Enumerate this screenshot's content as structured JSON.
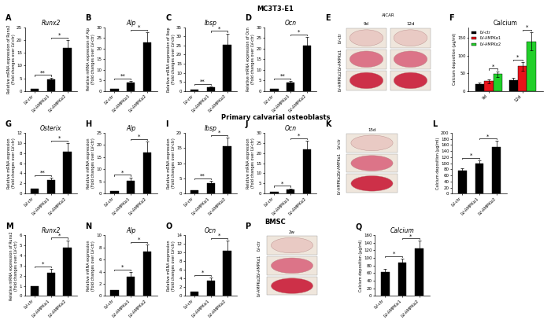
{
  "sections": [
    "MC3T3-E1",
    "Primary calvarial osteoblasts",
    "BMSC"
  ],
  "chart_data": [
    {
      "panel": "A",
      "type": "bar",
      "title": "Runx2",
      "y_label": "Relative mRNA expression of Runx2\n(Fold changes over LV-ctr)",
      "categories": [
        "LV-ctr",
        "LV-AMPKα1",
        "LV-AMPKα2"
      ],
      "values": [
        1,
        4.5,
        17
      ],
      "errors": [
        0,
        0.8,
        3
      ],
      "color": "#000000",
      "significance": [
        "**",
        "*"
      ],
      "ylim": [
        0,
        25
      ],
      "yticks": [
        0,
        5,
        10,
        15,
        20,
        25
      ]
    },
    {
      "panel": "B",
      "type": "bar",
      "title": "Alp",
      "y_label": "Relative mRNA expression of Alp\n(Fold changes over LV-ctr)",
      "categories": [
        "LV-ctr",
        "LV-AMPKα1",
        "LV-AMPKα2"
      ],
      "values": [
        1,
        4,
        23
      ],
      "errors": [
        0,
        0.7,
        4.5
      ],
      "color": "#000000",
      "significance": [
        "**",
        "*"
      ],
      "ylim": [
        0,
        30
      ],
      "yticks": [
        0,
        5,
        10,
        15,
        20,
        25,
        30
      ]
    },
    {
      "panel": "C",
      "type": "bar",
      "title": "Ibsp",
      "y_label": "Relative mRNA expression of Ibsp\n(Fold changes over LV-ctr)",
      "categories": [
        "LV-ctr",
        "LV-AMPKα1",
        "LV-AMPKα2"
      ],
      "values": [
        1,
        2,
        25.5
      ],
      "errors": [
        0,
        0.5,
        6
      ],
      "color": "#000000",
      "significance": [
        "**",
        "*"
      ],
      "ylim": [
        0,
        35
      ],
      "yticks": [
        0,
        5,
        10,
        15,
        20,
        25,
        30,
        35
      ]
    },
    {
      "panel": "D",
      "type": "bar",
      "title": "Ocn",
      "y_label": "Relative mRNA expression of Ocn\n(Fold changes over LV-ctr)",
      "categories": [
        "LV-ctr",
        "LV-AMPKα1",
        "LV-AMPKα2"
      ],
      "values": [
        1,
        4,
        21.5
      ],
      "errors": [
        0,
        0.8,
        4
      ],
      "color": "#000000",
      "significance": [
        "**",
        "*"
      ],
      "ylim": [
        0,
        30
      ],
      "yticks": [
        0,
        5,
        10,
        15,
        20,
        25,
        30
      ]
    },
    {
      "panel": "E",
      "type": "image",
      "header": "AICAR",
      "column_labels": [
        "9d",
        "12d"
      ],
      "row_labels": [
        "LV-ctr",
        "LV-AMPKα1",
        "LV-AMPKα2"
      ]
    },
    {
      "panel": "F",
      "type": "bar",
      "title": "Calcium",
      "y_label": "Calcium deposition (μg/ml)",
      "categories": [
        "9d",
        "12d"
      ],
      "series": [
        {
          "name": "LV-ctr",
          "color": "#000000",
          "values": [
            20,
            32
          ],
          "errors": [
            4,
            6
          ]
        },
        {
          "name": "LV-AMPKα1",
          "color": "#e8121a",
          "values": [
            28,
            70
          ],
          "errors": [
            5,
            12
          ]
        },
        {
          "name": "LV-AMPKα2",
          "color": "#22d02a",
          "values": [
            48,
            140
          ],
          "errors": [
            8,
            25
          ]
        }
      ],
      "significance": [
        [
          null,
          "*"
        ],
        [
          "*",
          "*"
        ]
      ],
      "legend": "upper left",
      "ylim": [
        0,
        180
      ],
      "yticks": [
        0,
        50,
        100,
        150
      ]
    },
    {
      "panel": "G",
      "type": "bar",
      "title": "Osterix",
      "y_label": "Relative mRNA expression\n(Fold changes over LV-ctr)",
      "categories": [
        "LV-ctr",
        "LV-AMPKα1",
        "LV-AMPKα2"
      ],
      "values": [
        1,
        2.7,
        8.3
      ],
      "errors": [
        0,
        0.4,
        1.7
      ],
      "color": "#000000",
      "significance": [
        "**",
        "*"
      ],
      "ylim": [
        0,
        12
      ],
      "yticks": [
        0,
        2,
        4,
        6,
        8,
        10,
        12
      ]
    },
    {
      "panel": "H",
      "type": "bar",
      "title": "Alp",
      "y_label": "Relative mRNA expression\n(Fold changes over LV-ctr)",
      "categories": [
        "LV-ctr",
        "LV-AMPKα1",
        "LV-AMPKα2"
      ],
      "values": [
        1,
        5.2,
        17
      ],
      "errors": [
        0,
        1.5,
        4.5
      ],
      "color": "#000000",
      "significance": [
        "*",
        "*"
      ],
      "ylim": [
        0,
        25
      ],
      "yticks": [
        0,
        5,
        10,
        15,
        20,
        25
      ]
    },
    {
      "panel": "I",
      "type": "bar",
      "title": "Ibsp",
      "y_label": "Relative mRNA expression\n(Fold changes over LV-ctr)",
      "categories": [
        "LV-ctr",
        "LV-AMPKα1",
        "LV-AMPKα2"
      ],
      "values": [
        1,
        3.5,
        15.5
      ],
      "errors": [
        0,
        0.8,
        3
      ],
      "color": "#000000",
      "significance": [
        "**",
        "*"
      ],
      "ylim": [
        0,
        20
      ],
      "yticks": [
        0,
        5,
        10,
        15,
        20
      ]
    },
    {
      "panel": "J",
      "type": "bar",
      "title": "Ocn",
      "y_label": "Relative mRNA expression\n(Fold changes over LV-ctr)",
      "categories": [
        "LV-ctr",
        "LV-AMPKα1",
        "LV-AMPKα2"
      ],
      "values": [
        1,
        2.2,
        22
      ],
      "errors": [
        0,
        0.4,
        4
      ],
      "color": "#000000",
      "significance": [
        "*",
        "*"
      ],
      "ylim": [
        0,
        30
      ],
      "yticks": [
        0,
        5,
        10,
        15,
        20,
        25,
        30
      ]
    },
    {
      "panel": "K",
      "type": "image",
      "column_labels": [
        "15d"
      ],
      "row_labels": [
        "LV-ctr",
        "LV-AMPKα1",
        "LV-AMPKα2"
      ]
    },
    {
      "panel": "L",
      "type": "bar",
      "y_label": "Calcium deposition (μg/ml)",
      "categories": [
        "LV-ctr",
        "LV-AMPKα1",
        "LV-AMPKα2"
      ],
      "values": [
        75,
        100,
        153
      ],
      "errors": [
        8,
        10,
        20
      ],
      "color": "#000000",
      "significance": [
        "*",
        "*"
      ],
      "ylim": [
        0,
        200
      ],
      "yticks": [
        0,
        20,
        40,
        60,
        80,
        100,
        120,
        140,
        160,
        180,
        200
      ]
    },
    {
      "panel": "M",
      "type": "bar",
      "title": "Runx2",
      "y_label": "Relative mRNA expression of Runx2\n(Fold changes over LV-ctr)",
      "categories": [
        "LV-ctr",
        "LV-AMPKα1",
        "LV-AMPKα2"
      ],
      "values": [
        1,
        2.3,
        4.8
      ],
      "errors": [
        0,
        0.4,
        0.7
      ],
      "color": "#000000",
      "significance": [
        "*",
        "*"
      ],
      "ylim": [
        0,
        6
      ],
      "yticks": [
        0,
        1,
        2,
        3,
        4,
        5,
        6
      ]
    },
    {
      "panel": "N",
      "type": "bar",
      "title": "Alp",
      "y_label": "Relative mRNA expression\n(Fold changes over LV-ctr)",
      "categories": [
        "LV-ctr",
        "LV-AMPKα1",
        "LV-AMPKα2"
      ],
      "values": [
        1,
        3.2,
        7.3
      ],
      "errors": [
        0,
        0.7,
        1.2
      ],
      "color": "#000000",
      "significance": [
        "*",
        "*"
      ],
      "ylim": [
        0,
        10
      ],
      "yticks": [
        0,
        2,
        4,
        6,
        8,
        10
      ]
    },
    {
      "panel": "O",
      "type": "bar",
      "title": "Ocn",
      "y_label": "Relative mRNA expression\n(Fold changes over LV-ctr)",
      "categories": [
        "LV-ctr",
        "LV-AMPKα1",
        "LV-AMPKα2"
      ],
      "values": [
        1,
        3.5,
        10.4
      ],
      "errors": [
        0,
        0.8,
        2.4
      ],
      "color": "#000000",
      "significance": [
        "*",
        "*"
      ],
      "ylim": [
        0,
        14
      ],
      "yticks": [
        0,
        2,
        4,
        6,
        8,
        10,
        12,
        14
      ]
    },
    {
      "panel": "P",
      "type": "image",
      "column_labels": [
        "2w"
      ],
      "row_labels": [
        "LV-ctr",
        "LV-AMPKα1",
        "LV-AMPKα2"
      ]
    },
    {
      "panel": "Q",
      "type": "bar",
      "title": "Calcium",
      "y_label": "Calcium deposition (μg/ml)",
      "categories": [
        "LV-ctr",
        "LV-AMPKα1",
        "LV-AMPKα2"
      ],
      "values": [
        63,
        88,
        125
      ],
      "errors": [
        8,
        10,
        20
      ],
      "color": "#000000",
      "significance": [
        "*",
        "*"
      ],
      "ylim": [
        0,
        160
      ],
      "yticks": [
        0,
        20,
        40,
        60,
        80,
        100,
        120,
        140,
        160
      ]
    }
  ]
}
